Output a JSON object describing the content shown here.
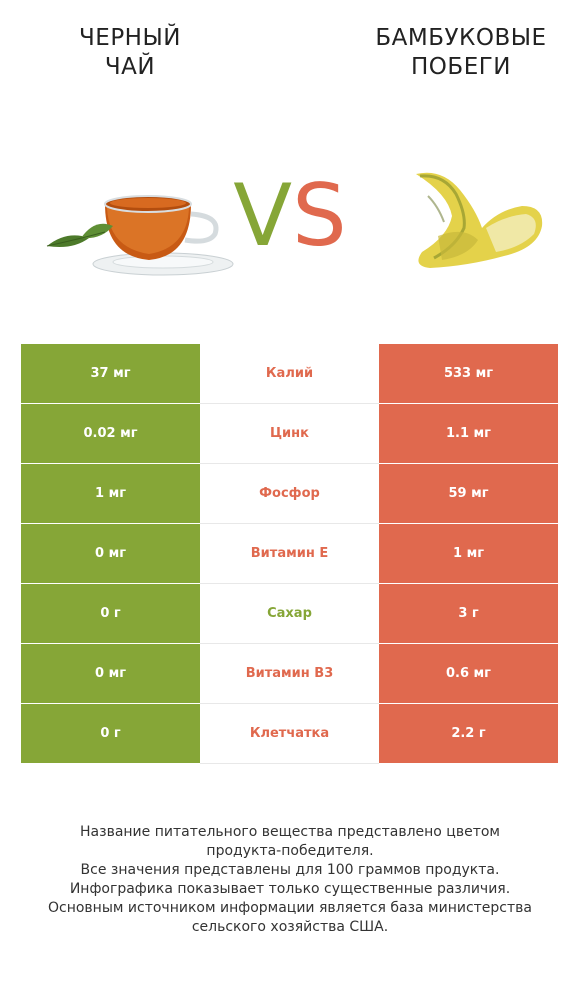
{
  "left_title": "ЧЕРНЫЙ\nЧАЙ",
  "right_title": "БАМБУКОВЫЕ\nПОБЕГИ",
  "vs": {
    "v": "V",
    "s": "S"
  },
  "colors": {
    "left": "#86a637",
    "right": "#e0694e"
  },
  "rows": [
    {
      "left": "37 мг",
      "nutrient": "Калий",
      "right": "533 мг",
      "winner": "right"
    },
    {
      "left": "0.02 мг",
      "nutrient": "Цинк",
      "right": "1.1 мг",
      "winner": "right"
    },
    {
      "left": "1 мг",
      "nutrient": "Фосфор",
      "right": "59 мг",
      "winner": "right"
    },
    {
      "left": "0 мг",
      "nutrient": "Витамин E",
      "right": "1 мг",
      "winner": "right"
    },
    {
      "left": "0 г",
      "nutrient": "Сахар",
      "right": "3 г",
      "winner": "left"
    },
    {
      "left": "0 мг",
      "nutrient": "Витамин B3",
      "right": "0.6 мг",
      "winner": "right"
    },
    {
      "left": "0 г",
      "nutrient": "Клетчатка",
      "right": "2.2 г",
      "winner": "right"
    }
  ],
  "footer": [
    "Название питательного вещества представлено цветом",
    "продукта-победителя.",
    "Все значения представлены для 100 граммов продукта.",
    "Инфографика показывает только существенные различия.",
    "Основным источником информации является база министерства",
    "сельского хозяйства США."
  ]
}
